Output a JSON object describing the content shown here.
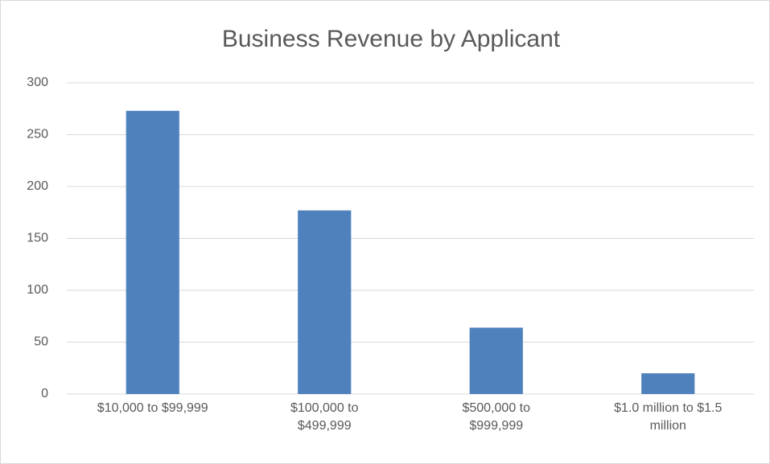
{
  "chart_data": {
    "type": "bar",
    "title": "Business Revenue by Applicant",
    "categories": [
      "$10,000 to $99,999",
      "$100,000 to $499,999",
      "$500,000 to $999,999",
      "$1.0 million to $1.5 million"
    ],
    "values": [
      273,
      177,
      64,
      20
    ],
    "color": "#4f81bd",
    "ylim": [
      0,
      300
    ],
    "yticks": [
      0,
      50,
      100,
      150,
      200,
      250,
      300
    ],
    "grid": true
  }
}
